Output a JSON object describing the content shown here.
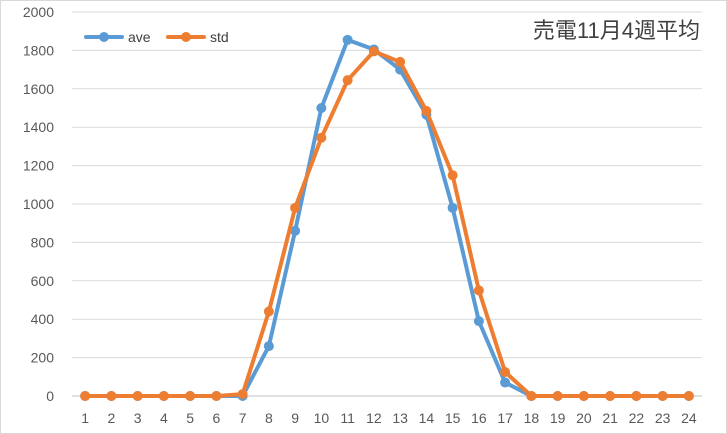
{
  "chart_data": {
    "type": "line",
    "title": "売電11月4週平均",
    "xlabel": "",
    "ylabel": "",
    "categories": [
      "1",
      "2",
      "3",
      "4",
      "5",
      "6",
      "7",
      "8",
      "9",
      "10",
      "11",
      "12",
      "13",
      "14",
      "15",
      "16",
      "17",
      "18",
      "19",
      "20",
      "21",
      "22",
      "23",
      "24"
    ],
    "ylim": [
      0,
      2000
    ],
    "yticks": [
      0,
      200,
      400,
      600,
      800,
      1000,
      1200,
      1400,
      1600,
      1800,
      2000
    ],
    "grid": "horizontal",
    "legend_position": "top-left",
    "series": [
      {
        "name": "ave",
        "color": "#5B9BD5",
        "values": [
          0,
          0,
          0,
          0,
          0,
          0,
          0,
          260,
          860,
          1500,
          1855,
          1805,
          1700,
          1465,
          980,
          390,
          70,
          0,
          0,
          0,
          0,
          0,
          0,
          0
        ]
      },
      {
        "name": "std",
        "color": "#ED7D31",
        "values": [
          0,
          0,
          0,
          0,
          0,
          0,
          10,
          440,
          980,
          1345,
          1645,
          1795,
          1740,
          1485,
          1150,
          550,
          125,
          0,
          0,
          0,
          0,
          0,
          0,
          0
        ]
      }
    ]
  }
}
